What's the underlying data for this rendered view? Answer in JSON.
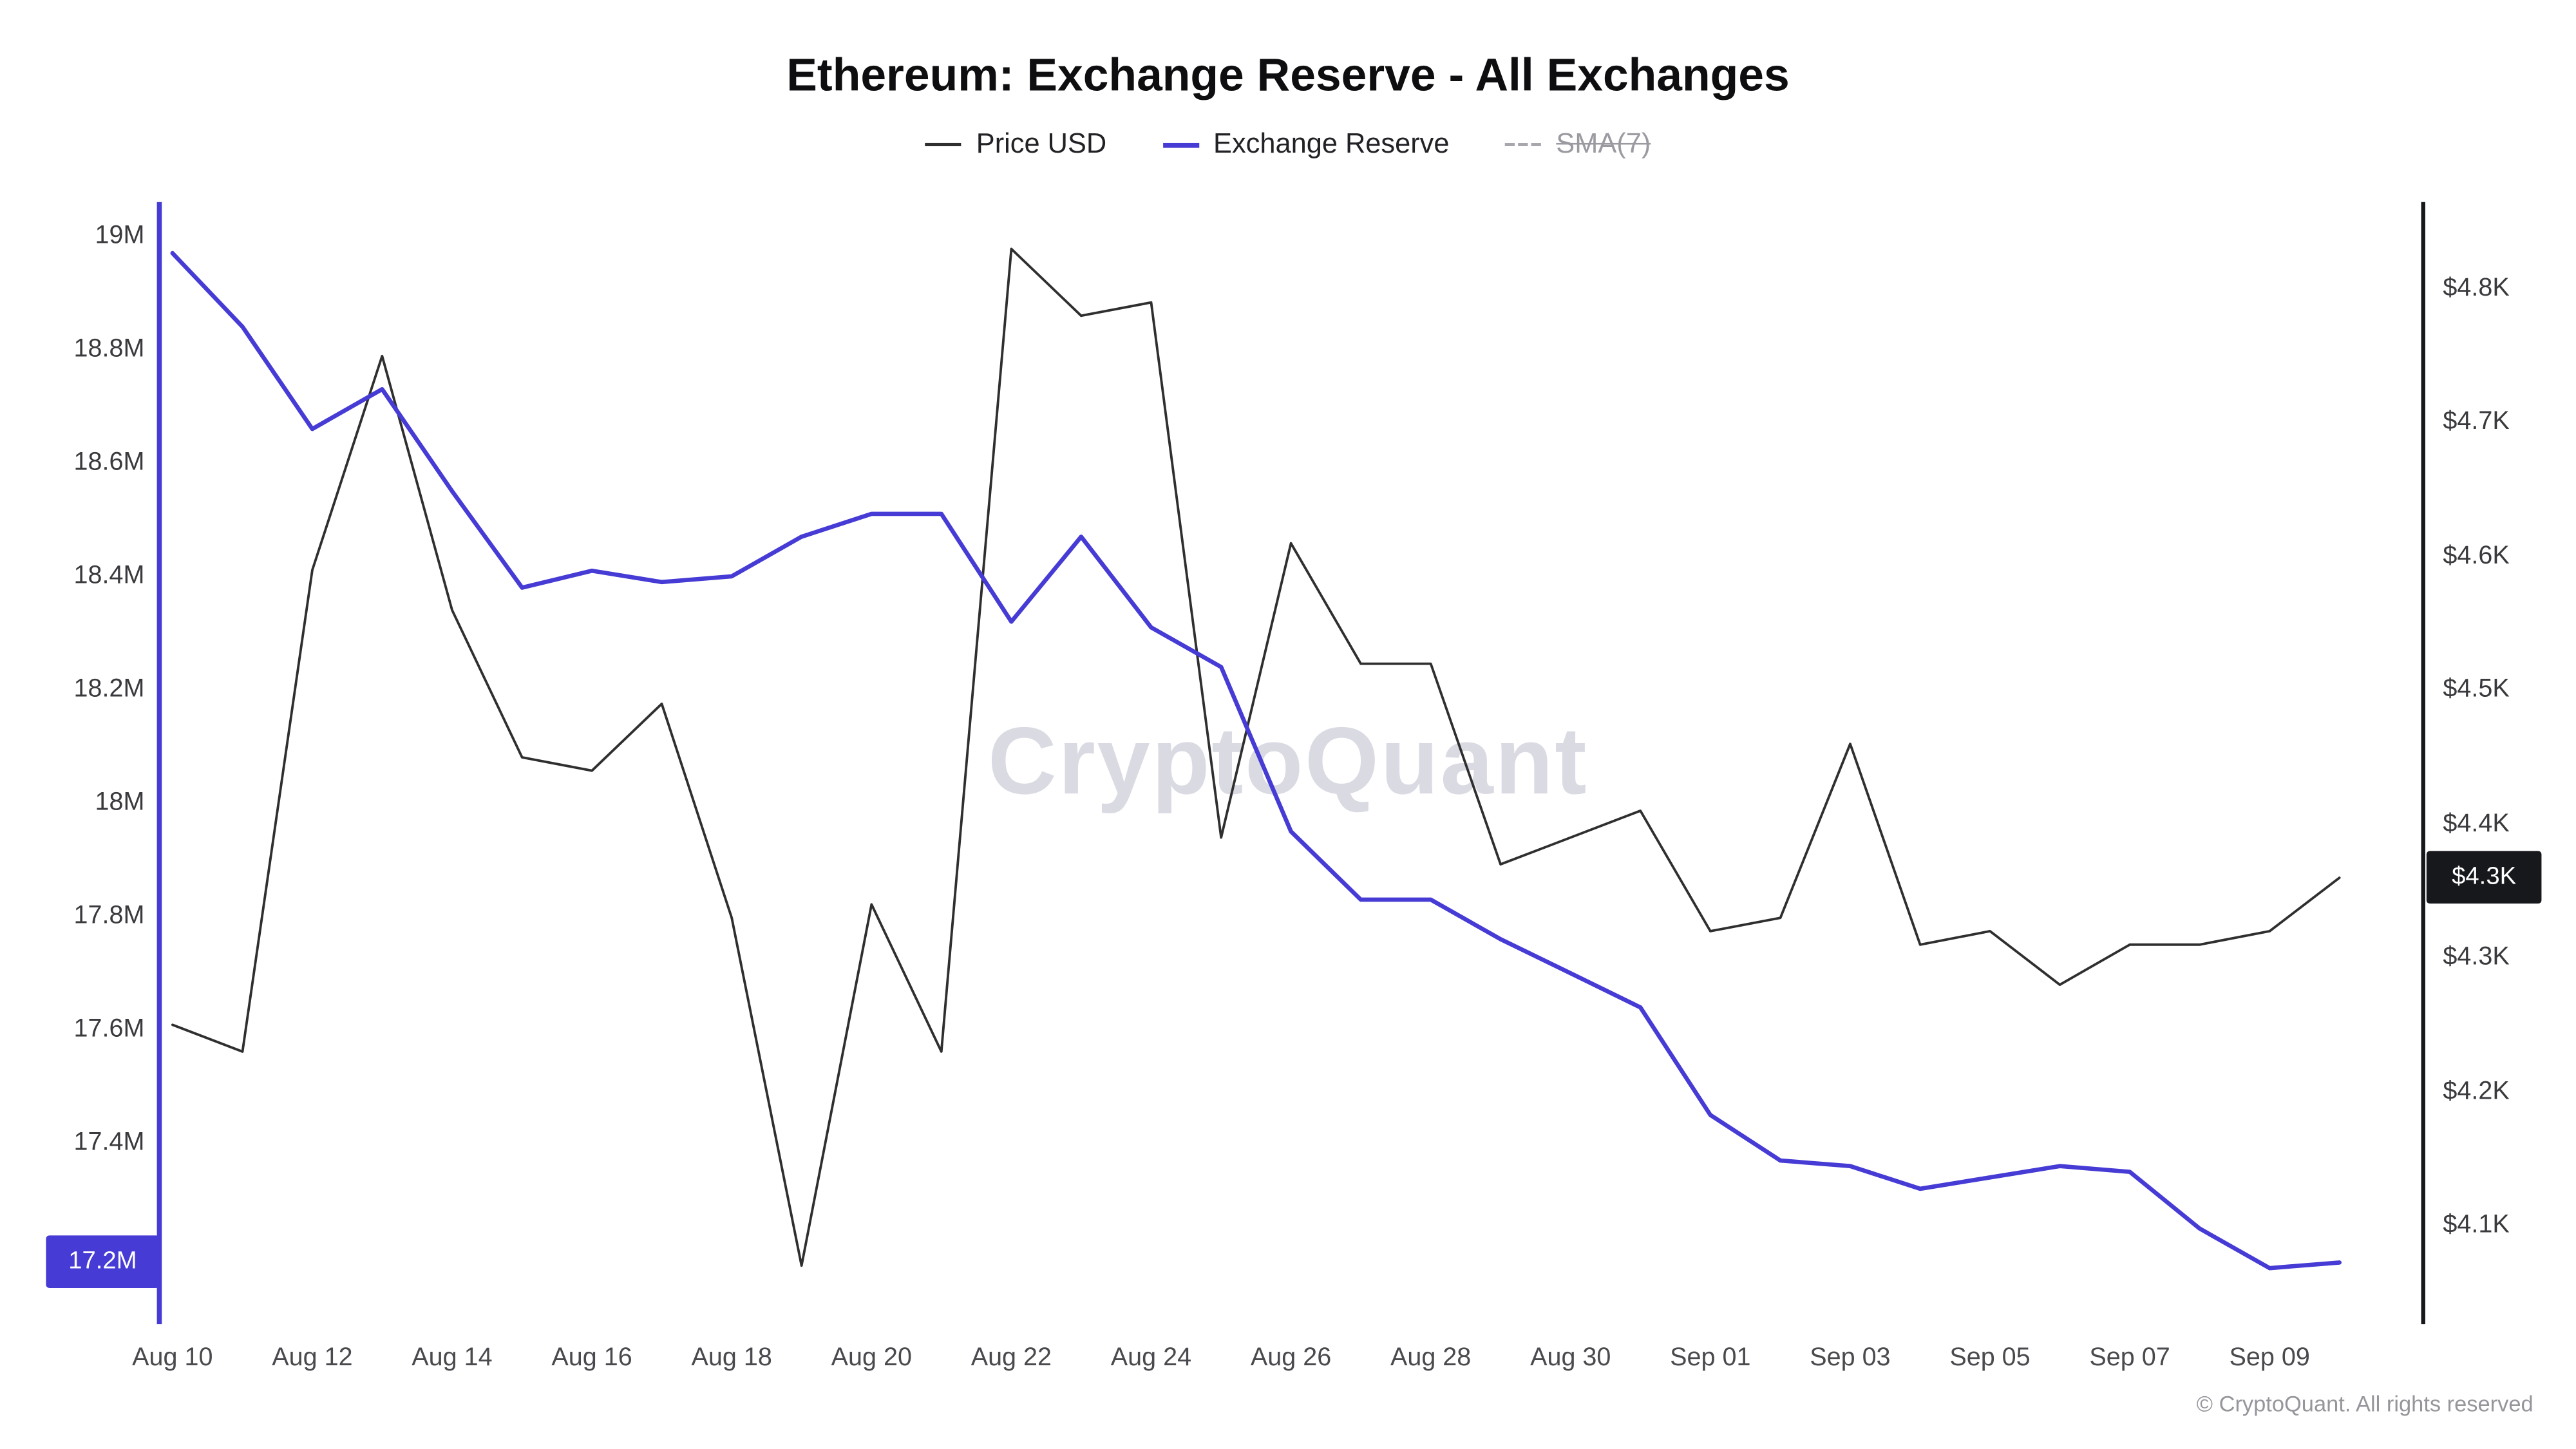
{
  "header": {
    "title": "Ethereum: Exchange Reserve - All Exchanges"
  },
  "legend": [
    {
      "label": "Price USD",
      "color": "#2f2f2f",
      "active": true
    },
    {
      "label": "Exchange Reserve",
      "color": "#463bd4",
      "active": true
    },
    {
      "label": "SMA(7)",
      "color": "#9a9aa1",
      "active": false
    }
  ],
  "watermark": "CryptoQuant",
  "badges": {
    "reserve": {
      "label": "17.2M",
      "color": "#463bd4"
    },
    "price": {
      "label": "$4.3K",
      "color": "#17181c"
    }
  },
  "footer": {
    "copyright": "© CryptoQuant. All rights reserved"
  },
  "chart_data": {
    "type": "line",
    "title": "Ethereum: Exchange Reserve - All Exchanges",
    "grid": false,
    "legend_position": "top",
    "x": [
      "Aug 10",
      "Aug 11",
      "Aug 12",
      "Aug 13",
      "Aug 14",
      "Aug 15",
      "Aug 16",
      "Aug 17",
      "Aug 18",
      "Aug 19",
      "Aug 20",
      "Aug 21",
      "Aug 22",
      "Aug 23",
      "Aug 24",
      "Aug 25",
      "Aug 26",
      "Aug 27",
      "Aug 28",
      "Aug 29",
      "Aug 30",
      "Aug 31",
      "Sep 01",
      "Sep 02",
      "Sep 03",
      "Sep 04",
      "Sep 05",
      "Sep 06",
      "Sep 07",
      "Sep 08",
      "Sep 09",
      "Sep 10"
    ],
    "x_tick_indices": [
      0,
      2,
      4,
      6,
      8,
      10,
      12,
      14,
      16,
      18,
      20,
      22,
      24,
      26,
      28,
      30
    ],
    "x_tick_labels": [
      "Aug 10",
      "Aug 12",
      "Aug 14",
      "Aug 16",
      "Aug 18",
      "Aug 20",
      "Aug 22",
      "Aug 24",
      "Aug 26",
      "Aug 28",
      "Aug 30",
      "Sep 01",
      "Sep 03",
      "Sep 05",
      "Sep 07",
      "Sep 09"
    ],
    "left_axis": {
      "tick_labels": [
        "19M",
        "18.8M",
        "18.6M",
        "18.4M",
        "18.2M",
        "18M",
        "17.8M",
        "17.6M",
        "17.4M",
        "17.2M"
      ],
      "tick_values": [
        19.0,
        18.8,
        18.6,
        18.4,
        18.2,
        18.0,
        17.8,
        17.6,
        17.4,
        17.2
      ],
      "range_top": 19.06,
      "range_bottom": 17.09
    },
    "right_axis": {
      "tick_labels": [
        "$4.8K",
        "$4.7K",
        "$4.6K",
        "$4.5K",
        "$4.4K",
        "$4.3K",
        "$4.2K",
        "$4.1K"
      ],
      "tick_values": [
        4.8,
        4.7,
        4.6,
        4.5,
        4.4,
        4.3,
        4.2,
        4.1
      ],
      "range_top": 4.865,
      "range_bottom": 4.03
    },
    "series": [
      {
        "name": "Price USD",
        "axis": "right",
        "color": "#2f2f2f",
        "width": 1.5,
        "visible": true,
        "values": [
          4.25,
          4.23,
          4.59,
          4.75,
          4.56,
          4.45,
          4.44,
          4.49,
          4.33,
          4.07,
          4.34,
          4.23,
          4.83,
          4.78,
          4.79,
          4.39,
          4.61,
          4.52,
          4.52,
          4.37,
          4.39,
          4.41,
          4.32,
          4.33,
          4.46,
          4.31,
          4.32,
          4.28,
          4.31,
          4.31,
          4.32,
          4.36
        ]
      },
      {
        "name": "Exchange Reserve",
        "axis": "left",
        "color": "#463bd4",
        "width": 2.6,
        "visible": true,
        "values": [
          18.97,
          18.84,
          18.66,
          18.73,
          18.55,
          18.38,
          18.41,
          18.39,
          18.4,
          18.47,
          18.51,
          18.51,
          18.32,
          18.47,
          18.31,
          18.24,
          17.95,
          17.83,
          17.83,
          17.76,
          17.7,
          17.64,
          17.45,
          17.37,
          17.36,
          17.32,
          17.34,
          17.36,
          17.35,
          17.25,
          17.18,
          17.19
        ]
      },
      {
        "name": "SMA(7)",
        "axis": "left",
        "color": "#9a9aa1",
        "width": 1.5,
        "visible": false,
        "values": []
      }
    ]
  }
}
